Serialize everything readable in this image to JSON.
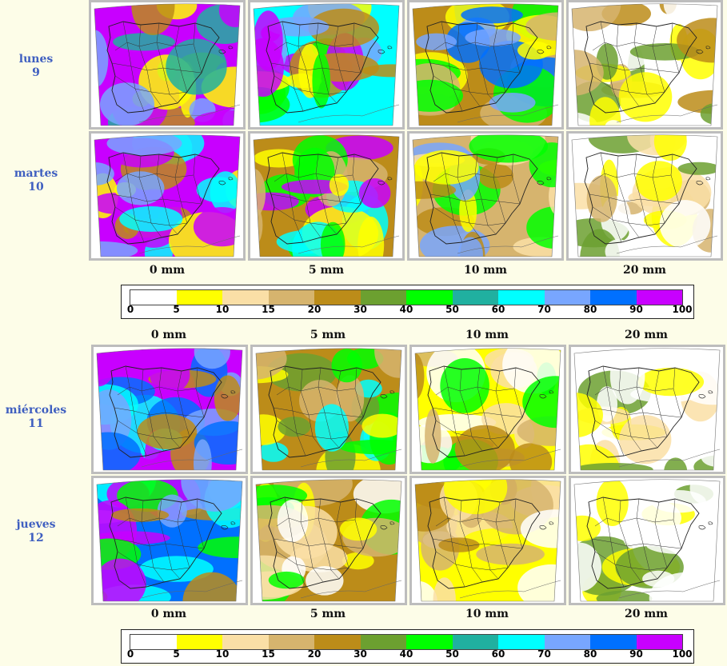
{
  "blocks": [
    {
      "days": [
        {
          "name": "lunes",
          "num": "9"
        },
        {
          "name": "martes",
          "num": "10"
        }
      ],
      "thresholds": [
        "0 mm",
        "5 mm",
        "10 mm",
        "20 mm"
      ]
    },
    {
      "days": [
        {
          "name": "miércoles",
          "num": "11"
        },
        {
          "name": "jueves",
          "num": "12"
        }
      ],
      "thresholds": [
        "0 mm",
        "5 mm",
        "10 mm",
        "20 mm"
      ]
    }
  ],
  "legend": {
    "labels": [
      "0",
      "5",
      "10",
      "15",
      "20",
      "30",
      "40",
      "50",
      "60",
      "70",
      "80",
      "90",
      "100"
    ],
    "colors": [
      "#ffffff",
      "#ffff00",
      "#fadfa6",
      "#d6b46e",
      "#bc8c19",
      "#6ca030",
      "#00ff00",
      "#20b0a0",
      "#00ffff",
      "#78a6ff",
      "#0070ff",
      "#c800ff"
    ]
  },
  "map_colors": {
    "land_outline": "#222222",
    "sea": "#ffffff",
    "province_lines": "#333333"
  }
}
